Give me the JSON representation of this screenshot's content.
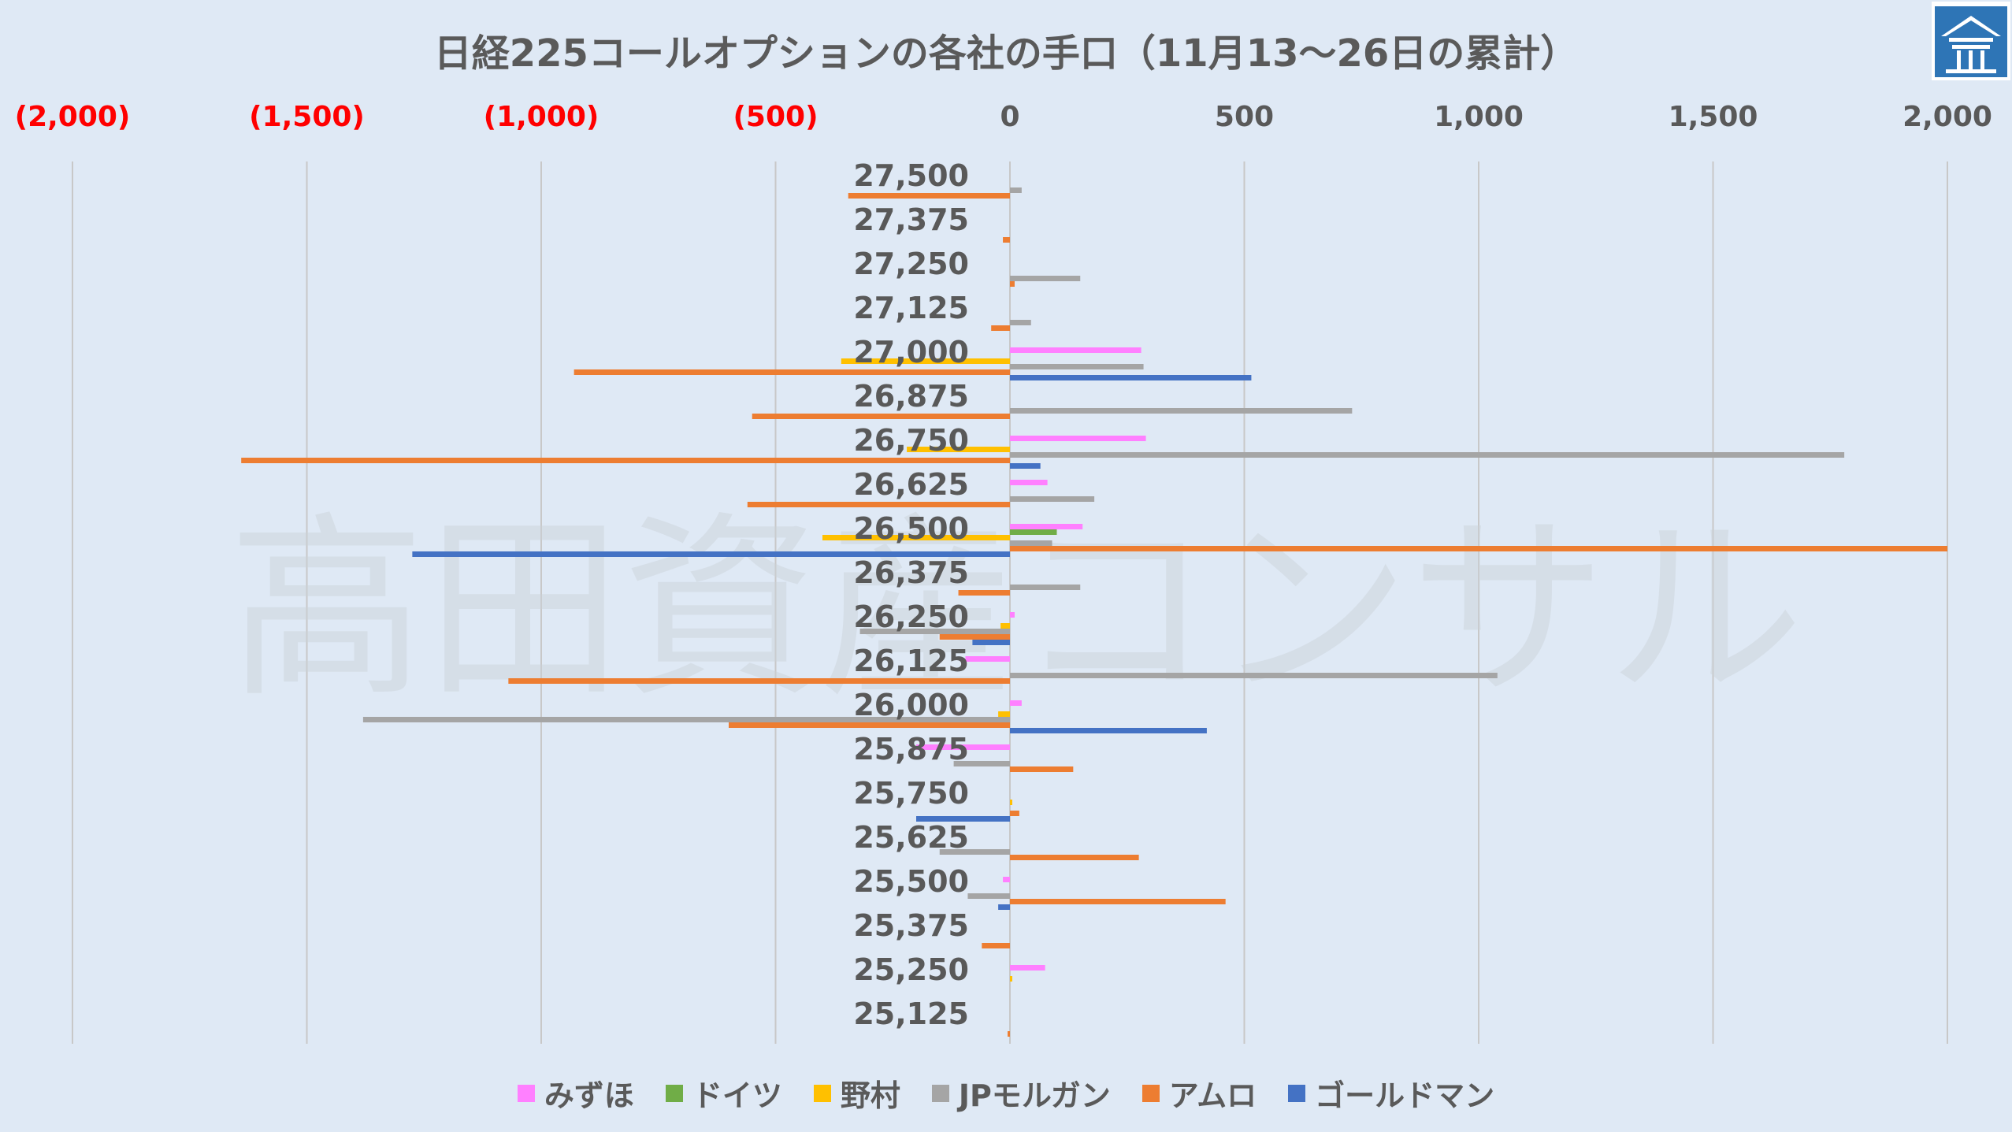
{
  "chart_data": {
    "type": "bar",
    "orientation": "horizontal",
    "title": "日経225コールオプションの各社の手口（11月13～26日の累計）",
    "x_ticks": [
      {
        "value": -2000,
        "label": "(2,000)",
        "color": "#ff0000"
      },
      {
        "value": -1500,
        "label": "(1,500)",
        "color": "#ff0000"
      },
      {
        "value": -1000,
        "label": "(1,000)",
        "color": "#ff0000"
      },
      {
        "value": -500,
        "label": "(500)",
        "color": "#ff0000"
      },
      {
        "value": 0,
        "label": "0",
        "color": "#595959"
      },
      {
        "value": 500,
        "label": "500",
        "color": "#595959"
      },
      {
        "value": 1000,
        "label": "1,000",
        "color": "#595959"
      },
      {
        "value": 1500,
        "label": "1,500",
        "color": "#595959"
      },
      {
        "value": 2000,
        "label": "2,000",
        "color": "#595959"
      }
    ],
    "xlim": [
      -2000,
      2000
    ],
    "grid": true,
    "legend_position": "bottom",
    "categories": [
      "27,500",
      "27,375",
      "27,250",
      "27,125",
      "27,000",
      "26,875",
      "26,750",
      "26,625",
      "26,500",
      "26,375",
      "26,250",
      "26,125",
      "26,000",
      "25,875",
      "25,750",
      "25,625",
      "25,500",
      "25,375",
      "25,250",
      "25,125"
    ],
    "series": [
      {
        "name": "みずほ",
        "color": "#ff80ff",
        "values": [
          0,
          0,
          0,
          0,
          280,
          0,
          290,
          80,
          155,
          0,
          10,
          -95,
          25,
          -200,
          0,
          0,
          -15,
          0,
          75,
          0
        ]
      },
      {
        "name": "ドイツ",
        "color": "#70ad47",
        "values": [
          0,
          0,
          0,
          0,
          0,
          0,
          0,
          0,
          100,
          0,
          0,
          0,
          0,
          0,
          0,
          0,
          0,
          0,
          0,
          0
        ]
      },
      {
        "name": "野村",
        "color": "#ffc000",
        "values": [
          0,
          0,
          0,
          0,
          -360,
          0,
          -220,
          0,
          -400,
          0,
          -20,
          0,
          -25,
          0,
          5,
          0,
          0,
          0,
          5,
          0
        ]
      },
      {
        "name": "JPモルガン",
        "color": "#a5a5a5",
        "values": [
          25,
          0,
          150,
          45,
          285,
          730,
          1780,
          180,
          90,
          150,
          -320,
          1040,
          -1380,
          -120,
          0,
          -150,
          -90,
          0,
          0,
          0
        ]
      },
      {
        "name": "アムロ",
        "color": "#ed7d31",
        "values": [
          -345,
          -15,
          10,
          -40,
          -930,
          -550,
          -1640,
          -560,
          2000,
          -110,
          -150,
          -1070,
          -600,
          135,
          20,
          275,
          460,
          -60,
          0,
          -5
        ]
      },
      {
        "name": "ゴールドマン",
        "color": "#4472c4",
        "values": [
          0,
          0,
          0,
          0,
          515,
          0,
          65,
          0,
          -1275,
          0,
          -80,
          0,
          420,
          0,
          -200,
          0,
          -25,
          0,
          0,
          0
        ]
      }
    ]
  },
  "watermark": "高田資産コンサル",
  "logo": {
    "icon": "house-logo-icon",
    "color": "#2e75b6"
  }
}
